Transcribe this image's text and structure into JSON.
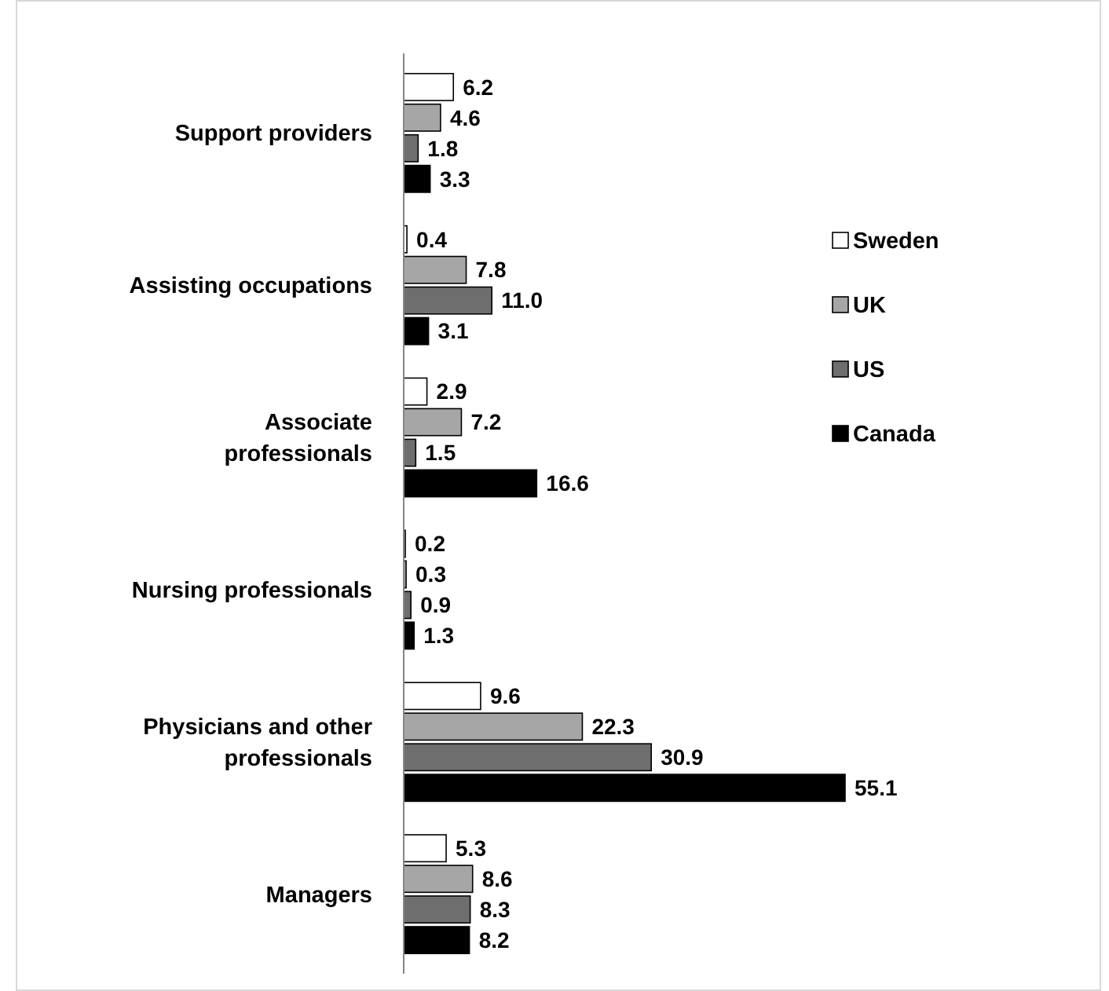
{
  "chart_data": {
    "type": "bar",
    "orientation": "horizontal",
    "categories": [
      "Support providers",
      "Assisting occupations",
      "Associate professionals",
      "Nursing professionals",
      "Physicians and other professionals",
      "Managers"
    ],
    "series": [
      {
        "name": "Sweden",
        "color": "#ffffff",
        "values": [
          6.2,
          0.4,
          2.9,
          0.2,
          9.6,
          5.3
        ],
        "value_labels": [
          "6.2",
          "0.4",
          "2.9",
          "0.2",
          "9.6",
          "5.3"
        ]
      },
      {
        "name": "UK",
        "color": "#a6a6a6",
        "values": [
          4.6,
          7.8,
          7.2,
          0.3,
          22.3,
          8.6
        ],
        "value_labels": [
          "4.6",
          "7.8",
          "7.2",
          "0.3",
          "22.3",
          "8.6"
        ]
      },
      {
        "name": "US",
        "color": "#6e6e6e",
        "values": [
          1.8,
          11.0,
          1.5,
          0.9,
          30.9,
          8.3
        ],
        "value_labels": [
          "1.8",
          "11.0",
          "1.5",
          "0.9",
          "30.9",
          "8.3"
        ]
      },
      {
        "name": "Canada",
        "color": "#000000",
        "values": [
          3.3,
          3.1,
          16.6,
          1.3,
          55.1,
          8.2
        ],
        "value_labels": [
          "3.3",
          "3.1",
          "16.6",
          "1.3",
          "55.1",
          "8.2"
        ]
      }
    ],
    "legend": "right"
  }
}
